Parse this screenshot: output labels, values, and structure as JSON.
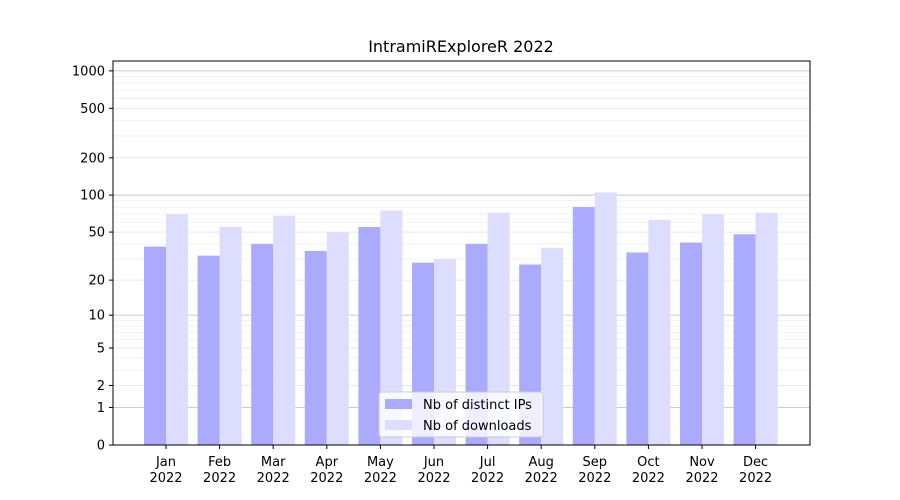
{
  "chart_data": {
    "type": "bar",
    "title": "IntramiRExploreR 2022",
    "xlabel": "",
    "ylabel": "",
    "y_scale": "symlog",
    "ylim": [
      0,
      1200
    ],
    "y_ticks": [
      0,
      1,
      2,
      5,
      10,
      20,
      50,
      100,
      200,
      500,
      1000
    ],
    "y_tick_labels": [
      "0",
      "1",
      "2",
      "5",
      "10",
      "20",
      "50",
      "100",
      "200",
      "500",
      "1000"
    ],
    "grid": true,
    "legend_position": "lower center",
    "categories": [
      "Jan\n2022",
      "Feb\n2022",
      "Mar\n2022",
      "Apr\n2022",
      "May\n2022",
      "Jun\n2022",
      "Jul\n2022",
      "Aug\n2022",
      "Sep\n2022",
      "Oct\n2022",
      "Nov\n2022",
      "Dec\n2022"
    ],
    "series": [
      {
        "name": "Nb of distinct IPs",
        "color": "#aaaaff",
        "values": [
          38,
          32,
          40,
          35,
          55,
          28,
          40,
          27,
          80,
          34,
          41,
          48
        ]
      },
      {
        "name": "Nb of downloads",
        "color": "#ddddff",
        "values": [
          70,
          55,
          68,
          50,
          75,
          30,
          72,
          37,
          105,
          63,
          70,
          72
        ]
      }
    ]
  }
}
